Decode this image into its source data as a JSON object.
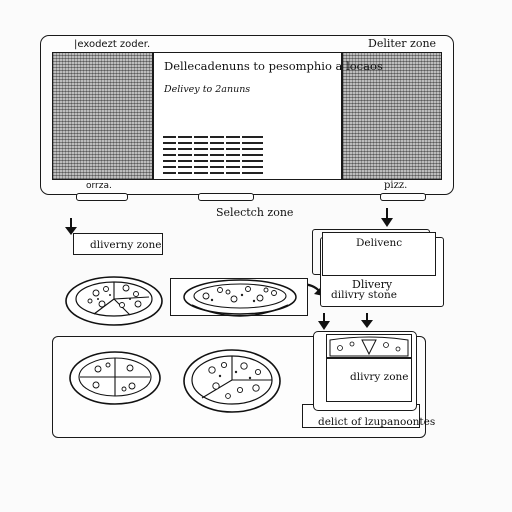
{
  "panel": {
    "top_left_label": "|exodezt zoder.",
    "top_right_label": "Deliter zone",
    "screen_heading": "Dellecadenuns to pesomphio a locaos",
    "screen_subheading": "Delivey to 2anuns",
    "bottom_left_label": "orrza.",
    "bottom_right_label": "pizz."
  },
  "select_label": "Selectch zone",
  "delivery_zone_label": "dliverny zone",
  "delivery_card": {
    "title": "Delivenc",
    "line1": "Dlivery",
    "line2": "dilivry stone"
  },
  "box": {
    "label": "dlivry zone",
    "caption": "delict of lzupanoontes"
  }
}
